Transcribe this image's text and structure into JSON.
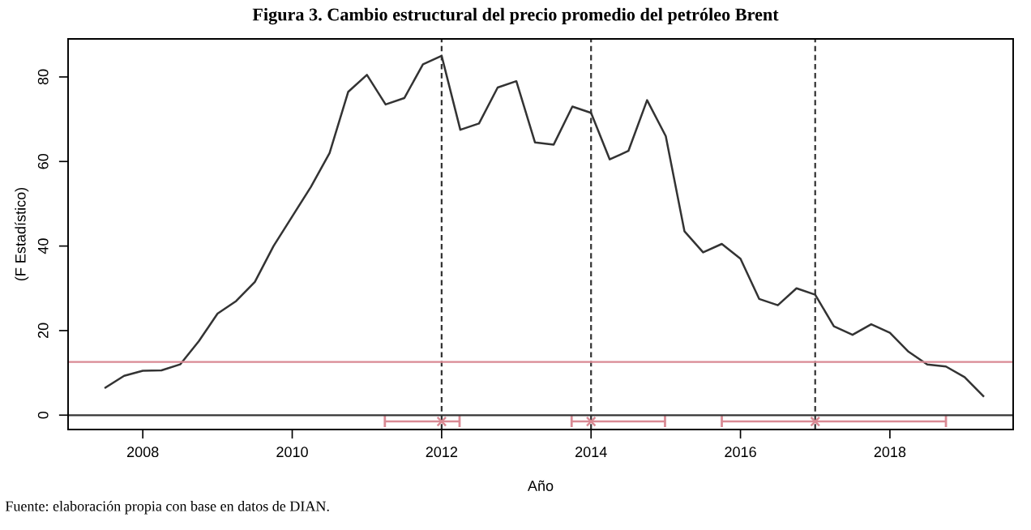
{
  "chart_data": {
    "type": "line",
    "title": "Figura 3. Cambio estructural del precio promedio del petróleo Brent",
    "xlabel": "Año",
    "ylabel": "(F Estadístico)",
    "annotations": [
      "Fuente: elaboración propia con base en datos de DIAN."
    ],
    "series": [
      {
        "color": "#333333",
        "x": [
          2007.5,
          2007.75,
          2008.0,
          2008.25,
          2008.5,
          2008.75,
          2009.0,
          2009.25,
          2009.5,
          2009.75,
          2010.0,
          2010.25,
          2010.5,
          2010.75,
          2011.0,
          2011.25,
          2011.5,
          2011.75,
          2012.0,
          2012.25,
          2012.5,
          2012.75,
          2013.0,
          2013.25,
          2013.5,
          2013.75,
          2014.0,
          2014.25,
          2014.5,
          2014.75,
          2015.0,
          2015.25,
          2015.5,
          2015.75,
          2016.0,
          2016.25,
          2016.5,
          2016.75,
          2017.0,
          2017.25,
          2017.5,
          2017.75,
          2018.0,
          2018.25,
          2018.5,
          2018.75,
          2019.0,
          2019.25
        ],
        "values": [
          6.5,
          9.3,
          10.5,
          10.6,
          12,
          17.5,
          24,
          27,
          31.5,
          40,
          47,
          54,
          62,
          76.5,
          80.5,
          73.5,
          75,
          83,
          85,
          67.5,
          69,
          77.5,
          79,
          64.5,
          64,
          73,
          71.5,
          60.5,
          62.5,
          74.5,
          66,
          43.5,
          38.5,
          40.5,
          37,
          27.5,
          26,
          30,
          28.5,
          21,
          19,
          21.5,
          19.5,
          15,
          12,
          11.5,
          9,
          4.5
        ]
      },
      {
        "type": "scatter",
        "color": "#d98a94",
        "marker": "cross",
        "x": [
          2012,
          2014,
          2017
        ],
        "values": [
          -1.5,
          -1.5,
          -1.5
        ],
        "xerrors": [
          [
            2011.24,
            2012.24
          ],
          [
            2013.74,
            2014.99
          ],
          [
            2015.75,
            2018.75
          ]
        ]
      }
    ],
    "ref_lines": [
      {
        "axis": "x",
        "value": 2012,
        "color": "#333333",
        "line_style": "dashed"
      },
      {
        "axis": "x",
        "value": 2014,
        "color": "#333333",
        "line_style": "dashed"
      },
      {
        "axis": "x",
        "value": 2017,
        "color": "#333333",
        "line_style": "dashed"
      },
      {
        "axis": "y",
        "value": 12.6,
        "color": "#d98a94",
        "line_style": "solid"
      },
      {
        "axis": "y",
        "value": 0,
        "color": "#333333",
        "line_style": "solid"
      }
    ],
    "xlim": [
      2007.0,
      2019.65
    ],
    "ylim": [
      -3.4,
      89
    ],
    "xticks": [
      2008,
      2010,
      2012,
      2014,
      2016,
      2018
    ],
    "yticks": [
      0,
      20,
      40,
      60,
      80
    ],
    "grid": false,
    "legend": false
  }
}
